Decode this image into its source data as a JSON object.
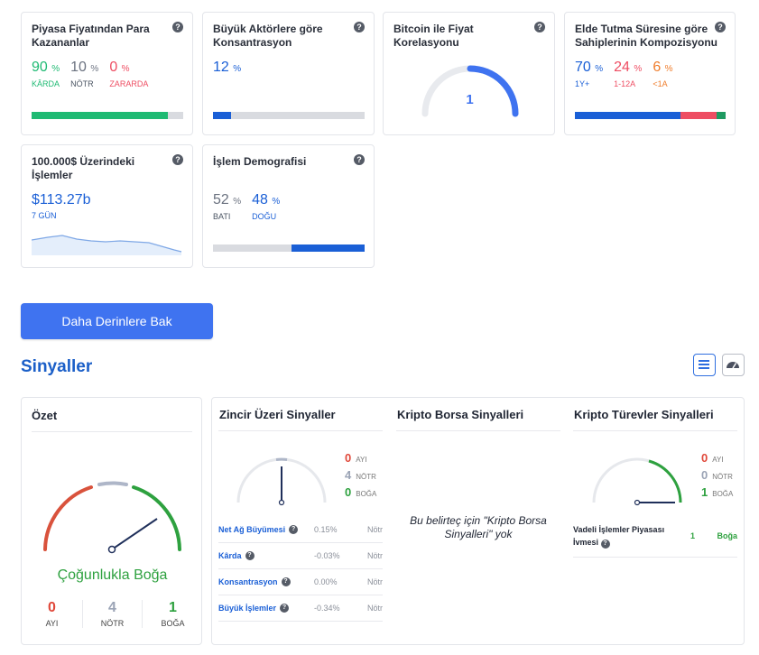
{
  "cards": {
    "profit": {
      "title": "Piyasa Fiyatından Para Kazananlar",
      "stats": [
        {
          "value": "90",
          "unit": "%",
          "label": "KÂRDA"
        },
        {
          "value": "10",
          "unit": "%",
          "label": "NÖTR"
        },
        {
          "value": "0",
          "unit": "%",
          "label": "ZARARDA"
        }
      ],
      "bar": [
        0.9,
        0.1,
        0.0
      ],
      "colors": {
        "in": "#1fba73",
        "neutral": "#d9dbe0",
        "out": "#ee4d62"
      }
    },
    "concentration": {
      "title": "Büyük Aktörlere göre Konsantrasyon",
      "value": "12",
      "unit": "%",
      "bar_fill": 0.12,
      "color": "#1a5fd6"
    },
    "correlation": {
      "title": "Bitcoin ile Fiyat Korelasyonu",
      "value": "1",
      "gauge_fill": 1.0,
      "color": "#3f73f0"
    },
    "holding": {
      "title": "Elde Tutma Süresine göre Sahiplerinin Kompozisyonu",
      "stats": [
        {
          "value": "70",
          "unit": "%",
          "label": "1Y+"
        },
        {
          "value": "24",
          "unit": "%",
          "label": "1-12A"
        },
        {
          "value": "6",
          "unit": "%",
          "label": "<1A"
        }
      ],
      "bar": [
        0.7,
        0.24,
        0.06
      ],
      "colors": [
        "#1a5fd6",
        "#ee4d62",
        "#1f9a61"
      ]
    },
    "large_tx": {
      "title": "100.000$ Üzerindeki İşlemler",
      "value": "$113.27b",
      "label": "7 GÜN"
    },
    "demographics": {
      "title": "İşlem Demografisi",
      "stats": [
        {
          "value": "52",
          "unit": "%",
          "label": "BATI"
        },
        {
          "value": "48",
          "unit": "%",
          "label": "DOĞU"
        }
      ],
      "bar": [
        0.52,
        0.48
      ]
    }
  },
  "help_icon": "?",
  "deeper_button": "Daha Derinlere Bak",
  "signals": {
    "title": "Sinyaller",
    "summary": {
      "title": "Özet",
      "verdict": "Çoğunlukla Boğa",
      "counts": [
        {
          "value": "0",
          "label": "AYI",
          "color": "#e0483a"
        },
        {
          "value": "4",
          "label": "NÖTR",
          "color": "#9aa3b5"
        },
        {
          "value": "1",
          "label": "BOĞA",
          "color": "#2ea13f"
        }
      ]
    },
    "onchain": {
      "title": "Zincir Üzeri Sinyaller",
      "counts": [
        {
          "value": "0",
          "label": "AYI"
        },
        {
          "value": "4",
          "label": "NÖTR"
        },
        {
          "value": "0",
          "label": "BOĞA"
        }
      ],
      "rows": [
        {
          "name": "Net Ağ Büyümesi",
          "value": "0.15%",
          "status": "Nötr"
        },
        {
          "name": "Kârda",
          "value": "-0.03%",
          "status": "Nötr"
        },
        {
          "name": "Konsantrasyon",
          "value": "0.00%",
          "status": "Nötr"
        },
        {
          "name": "Büyük İşlemler",
          "value": "-0.34%",
          "status": "Nötr"
        }
      ]
    },
    "exchange": {
      "title": "Kripto Borsa Sinyalleri",
      "empty_text": "Bu belirteç için \"Kripto Borsa Sinyalleri\" yok"
    },
    "derivatives": {
      "title": "Kripto Türevler Sinyalleri",
      "counts": [
        {
          "value": "0",
          "label": "AYI"
        },
        {
          "value": "0",
          "label": "NÖTR"
        },
        {
          "value": "1",
          "label": "BOĞA"
        }
      ],
      "rows": [
        {
          "name": "Vadeli İşlemler Piyasası İvmesi",
          "value": "1",
          "status": "Boğa"
        }
      ]
    }
  },
  "icons": {
    "list_view": "list-icon",
    "gauge_view": "gauge-icon",
    "help": "help-circle-icon"
  }
}
